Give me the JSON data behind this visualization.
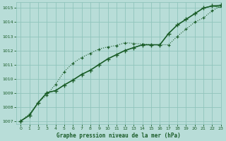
{
  "title": "Graphe pression niveau de la mer (hPa)",
  "bg_color": "#b8ddd8",
  "grid_color": "#90c4bc",
  "line_color_dark": "#1a5c28",
  "line_color_mid": "#2a7a38",
  "xlim": [
    -0.5,
    23
  ],
  "ylim": [
    1006.8,
    1015.4
  ],
  "yticks": [
    1007,
    1008,
    1009,
    1010,
    1011,
    1012,
    1013,
    1014,
    1015
  ],
  "xticks": [
    0,
    1,
    2,
    3,
    4,
    5,
    6,
    7,
    8,
    9,
    10,
    11,
    12,
    13,
    14,
    15,
    16,
    17,
    18,
    19,
    20,
    21,
    22,
    23
  ],
  "series_dotted": [
    1007.0,
    1007.5,
    1008.3,
    1008.85,
    1009.6,
    1010.5,
    1011.1,
    1011.5,
    1011.8,
    1012.1,
    1012.25,
    1012.35,
    1012.55,
    1012.5,
    1012.45,
    1012.4,
    1012.4,
    1012.4,
    1013.0,
    1013.5,
    1014.0,
    1014.3,
    1014.8,
    1015.15
  ],
  "series_solid1": [
    1007.0,
    1007.4,
    1008.3,
    1009.0,
    1009.15,
    1009.55,
    1009.9,
    1010.3,
    1010.6,
    1011.0,
    1011.4,
    1011.7,
    1012.0,
    1012.2,
    1012.4,
    1012.4,
    1012.4,
    1013.2,
    1013.8,
    1014.2,
    1014.6,
    1015.0,
    1015.15,
    1015.2
  ],
  "series_solid2": [
    1007.0,
    1007.4,
    1008.3,
    1009.0,
    1009.15,
    1009.55,
    1009.9,
    1010.3,
    1010.6,
    1011.0,
    1011.4,
    1011.7,
    1012.0,
    1012.2,
    1012.4,
    1012.4,
    1012.4,
    1013.2,
    1013.8,
    1014.2,
    1014.6,
    1015.0,
    1015.15,
    1015.05
  ]
}
